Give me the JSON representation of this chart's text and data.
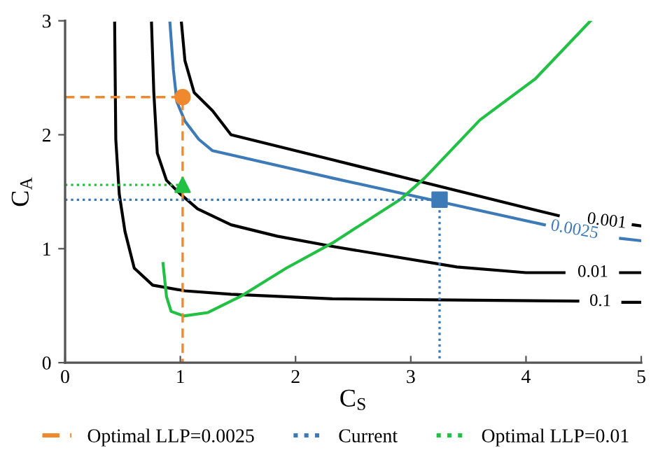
{
  "chart_data": {
    "type": "line",
    "xlabel": "C$_{S}$",
    "ylabel": "C$_{A}$",
    "xlim": [
      0,
      5
    ],
    "ylim": [
      0,
      3
    ],
    "xticks": [
      0,
      1,
      2,
      3,
      4,
      5
    ],
    "yticks": [
      0,
      1,
      2,
      3
    ],
    "grid": false,
    "legend": "bottom",
    "series": [
      {
        "name": "0.1",
        "color": "#000000",
        "x": [
          0.43,
          0.44,
          0.47,
          0.52,
          0.6,
          0.76,
          1.04,
          1.44,
          2.32,
          3.4,
          4.45,
          4.645,
          4.84,
          5.0
        ],
        "values": [
          2.98,
          1.96,
          1.48,
          1.15,
          0.83,
          0.68,
          0.63,
          0.6,
          0.56,
          0.55,
          0.54,
          null,
          0.53,
          0.53
        ]
      },
      {
        "name": "0.01",
        "color": "#000000",
        "x": [
          0.75,
          0.77,
          0.8,
          0.88,
          1.0,
          1.15,
          1.44,
          1.84,
          2.32,
          3.4,
          4.0,
          4.33,
          4.58,
          4.82,
          5.0
        ],
        "values": [
          2.98,
          2.37,
          1.84,
          1.6,
          1.48,
          1.35,
          1.21,
          1.11,
          1.02,
          0.84,
          0.79,
          0.79,
          null,
          0.79,
          0.79
        ]
      },
      {
        "name": "0.0025",
        "color": "#3d7ab8",
        "x": [
          0.91,
          0.94,
          0.97,
          1.04,
          1.16,
          1.28,
          2.32,
          4.16,
          4.42,
          4.82,
          5.0
        ],
        "values": [
          2.98,
          2.57,
          2.29,
          2.12,
          1.96,
          1.86,
          1.62,
          1.21,
          null,
          1.09,
          1.07
        ]
      },
      {
        "name": "0.001",
        "color": "#000000",
        "x": [
          1.01,
          1.04,
          1.12,
          1.28,
          1.44,
          2.32,
          4.28,
          4.7,
          4.93,
          5.0
        ],
        "values": [
          2.98,
          2.65,
          2.37,
          2.21,
          2.0,
          1.78,
          1.29,
          null,
          1.21,
          1.2
        ]
      },
      {
        "color": "#22c045",
        "x": [
          0.85,
          0.88,
          0.92,
          1.03,
          1.24,
          1.52,
          1.92,
          2.32,
          2.92,
          3.12,
          3.6,
          4.08,
          4.56
        ],
        "values": [
          0.87,
          0.58,
          0.45,
          0.41,
          0.44,
          0.58,
          0.83,
          1.05,
          1.44,
          1.62,
          2.13,
          2.49,
          3.0
        ]
      },
      {
        "name": "Optimal LLP=0.0025",
        "color": "#f0882e",
        "line_style": "dashed",
        "x": [
          0,
          1.02,
          1.02
        ],
        "values": [
          2.33,
          2.33,
          0
        ]
      },
      {
        "name": "Current",
        "color": "#3d7ab8",
        "line_style": "dotted",
        "x": [
          0,
          3.25,
          3.25
        ],
        "values": [
          1.43,
          1.43,
          0
        ]
      },
      {
        "name": "Optimal LLP=0.01",
        "color": "#22c045",
        "line_style": "dotted",
        "x": [
          0,
          1.02
        ],
        "values": [
          1.56,
          1.56
        ]
      },
      {
        "type": "scatter",
        "color": "#f0882e",
        "marker": "circle",
        "x": [
          1.02
        ],
        "values": [
          2.33
        ]
      },
      {
        "type": "scatter",
        "color": "#3d7ab8",
        "marker": "square",
        "x": [
          3.25
        ],
        "values": [
          1.43
        ]
      },
      {
        "type": "scatter",
        "color": "#22c045",
        "marker": "triangle",
        "x": [
          1.02
        ],
        "values": [
          1.56
        ]
      }
    ]
  }
}
